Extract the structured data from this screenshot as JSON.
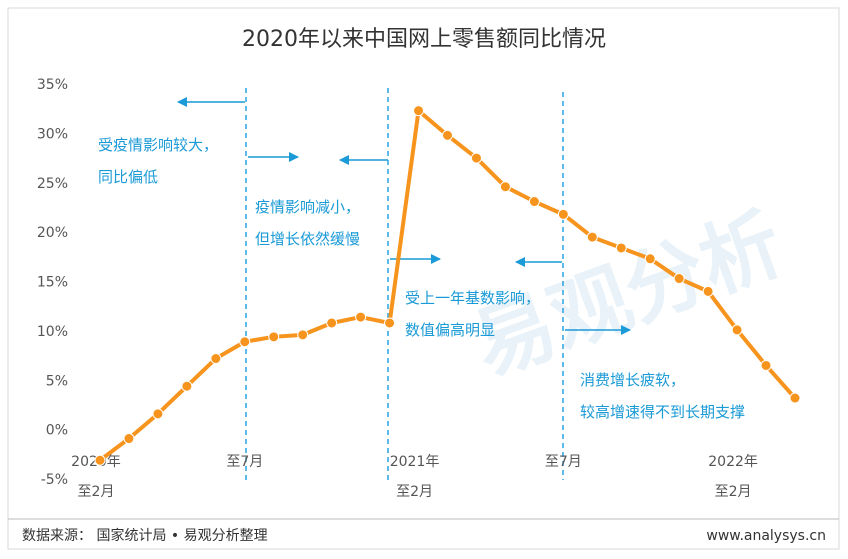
{
  "chart_data": {
    "type": "line",
    "title": "2020年以来中国网上零售额同比情况",
    "categories": [
      "2020年\n至2月",
      null,
      null,
      null,
      null,
      "至7月",
      null,
      null,
      null,
      null,
      null,
      "2021年\n至2月",
      null,
      null,
      null,
      null,
      "至7月",
      null,
      null,
      null,
      null,
      null,
      "2022年\n至2月",
      null,
      null
    ],
    "series": [
      {
        "name": "网上零售额同比",
        "color": "#f7941d",
        "values": [
          -3.0,
          -0.8,
          1.7,
          4.5,
          7.3,
          9.0,
          9.5,
          9.7,
          10.9,
          11.5,
          10.9,
          32.4,
          29.9,
          27.6,
          24.7,
          23.2,
          21.9,
          19.6,
          18.5,
          17.4,
          15.4,
          14.1,
          10.2,
          6.6,
          3.3
        ]
      }
    ],
    "ylim": [
      -5,
      35
    ],
    "yticks": [
      {
        "value": -5,
        "label": "-5%"
      },
      {
        "value": 0,
        "label": "0%"
      },
      {
        "value": 5,
        "label": "5%"
      },
      {
        "value": 10,
        "label": "10%"
      },
      {
        "value": 15,
        "label": "15%"
      },
      {
        "value": 20,
        "label": "20%"
      },
      {
        "value": 25,
        "label": "25%"
      },
      {
        "value": 30,
        "label": "30%"
      },
      {
        "value": 35,
        "label": "35%"
      }
    ],
    "grid": false,
    "annotations": [
      "受疫情影响较大，\n同比偏低",
      "疫情影响减小，\n但增长依然缓慢",
      "受上一年基数影响，\n数值偏高明显",
      "消费增长疲软，\n较高增速得不到长期支撑"
    ],
    "watermark": "易观分析",
    "source": "数据来源：  国家统计局 • 易观分析整理",
    "website": "www.analysys.cn"
  }
}
